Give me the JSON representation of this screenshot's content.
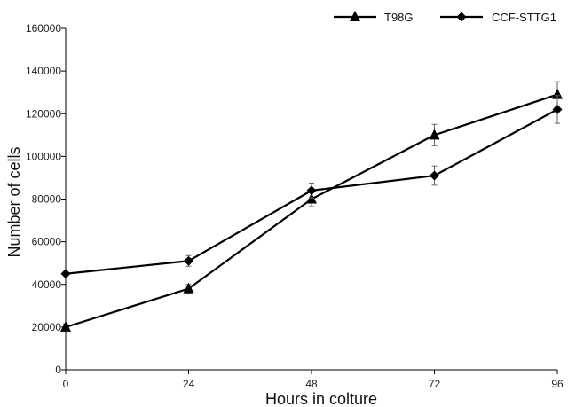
{
  "chart_data": {
    "type": "line",
    "title": "",
    "xlabel": "Hours in colture",
    "ylabel": "Number of cells",
    "x": [
      0,
      24,
      48,
      72,
      96
    ],
    "xlim": [
      0,
      96
    ],
    "ylim": [
      0,
      160000
    ],
    "x_ticks": [
      "0",
      "24",
      "48",
      "72",
      "96"
    ],
    "y_ticks": [
      "0",
      "20000",
      "40000",
      "60000",
      "80000",
      "100000",
      "120000",
      "140000",
      "160000"
    ],
    "grid": false,
    "legend_position": "top-right",
    "series": [
      {
        "name": "T98G",
        "marker": "triangle",
        "color": "#000000",
        "values": [
          20000,
          38000,
          80000,
          110000,
          129000
        ],
        "errors": [
          1500,
          2000,
          3500,
          5000,
          6000
        ]
      },
      {
        "name": "CCF-STTG1",
        "marker": "diamond",
        "color": "#000000",
        "values": [
          45000,
          51000,
          84000,
          91000,
          122000
        ],
        "errors": [
          1000,
          2500,
          3500,
          4500,
          6500
        ]
      }
    ]
  }
}
